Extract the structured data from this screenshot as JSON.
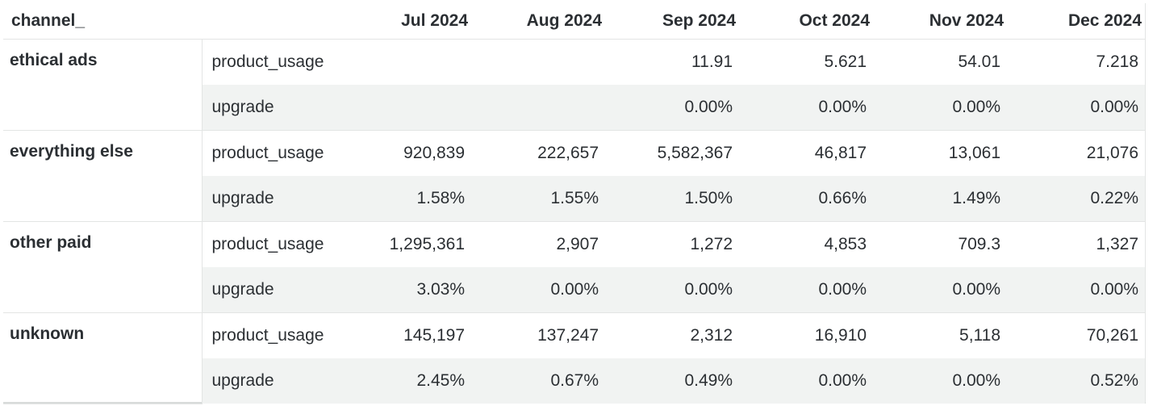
{
  "table": {
    "header": {
      "channel": "channel_",
      "months": [
        "Jul 2024",
        "Aug 2024",
        "Sep 2024",
        "Oct 2024",
        "Nov 2024",
        "Dec 2024"
      ]
    },
    "groups": [
      {
        "channel": "ethical ads",
        "rows": [
          {
            "metric": "product_usage",
            "values": [
              "",
              "",
              "11.91",
              "5.621",
              "54.01",
              "7.218"
            ]
          },
          {
            "metric": "upgrade",
            "values": [
              "",
              "",
              "0.00%",
              "0.00%",
              "0.00%",
              "0.00%"
            ]
          }
        ]
      },
      {
        "channel": "everything else",
        "rows": [
          {
            "metric": "product_usage",
            "values": [
              "920,839",
              "222,657",
              "5,582,367",
              "46,817",
              "13,061",
              "21,076"
            ]
          },
          {
            "metric": "upgrade",
            "values": [
              "1.58%",
              "1.55%",
              "1.50%",
              "0.66%",
              "1.49%",
              "0.22%"
            ]
          }
        ]
      },
      {
        "channel": "other paid",
        "rows": [
          {
            "metric": "product_usage",
            "values": [
              "1,295,361",
              "2,907",
              "1,272",
              "4,853",
              "709.3",
              "1,327"
            ]
          },
          {
            "metric": "upgrade",
            "values": [
              "3.03%",
              "0.00%",
              "0.00%",
              "0.00%",
              "0.00%",
              "0.00%"
            ]
          }
        ]
      },
      {
        "channel": "unknown",
        "rows": [
          {
            "metric": "product_usage",
            "values": [
              "145,197",
              "137,247",
              "2,312",
              "16,910",
              "5,118",
              "70,261"
            ]
          },
          {
            "metric": "upgrade",
            "values": [
              "2.45%",
              "0.67%",
              "0.49%",
              "0.00%",
              "0.00%",
              "0.52%"
            ]
          }
        ]
      }
    ]
  },
  "colors": {
    "text": "#2b2f33",
    "border": "#e3e5e4",
    "alt_row_bg": "#f1f3f2"
  }
}
